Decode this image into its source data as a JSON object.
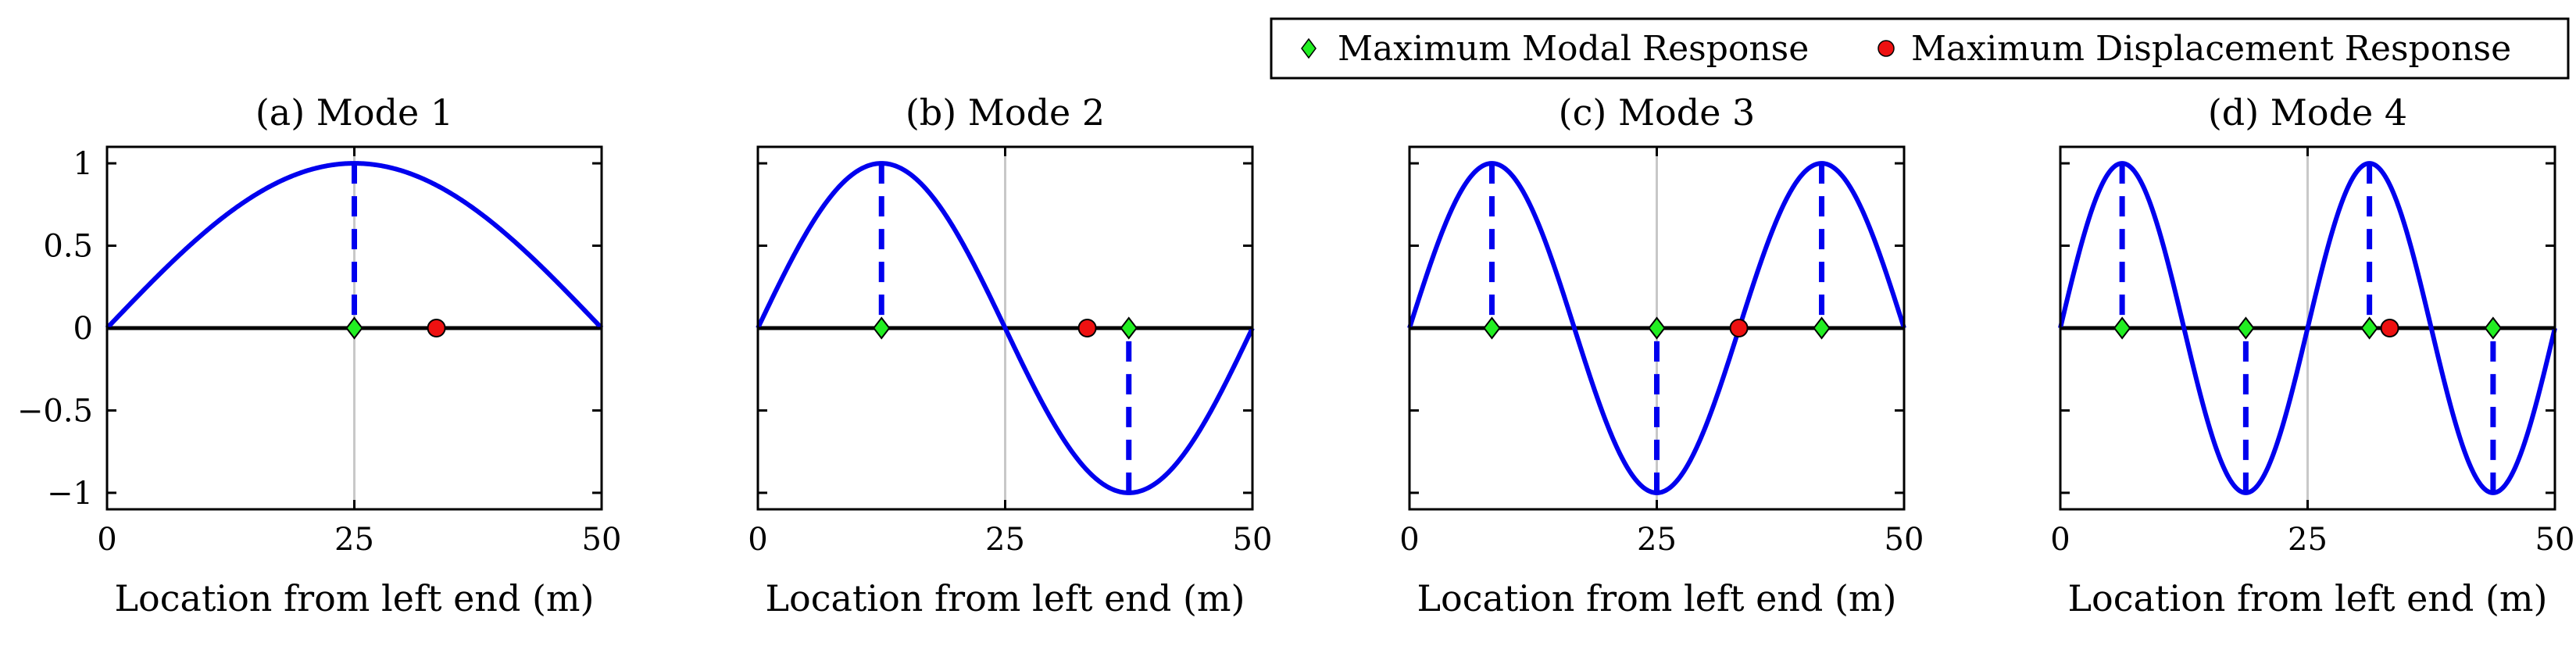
{
  "legend": {
    "entries": [
      {
        "label": "Maximum Modal Response",
        "marker": "diamond",
        "color": "#22ee22"
      },
      {
        "label": "Maximum Displacement Response",
        "marker": "circle",
        "color": "#ee1111"
      }
    ],
    "placement": "top-right"
  },
  "colors": {
    "curve": "#0000ee",
    "modal_marker": "#22ee22",
    "displacement_marker": "#ee1111",
    "baseline": "#000000",
    "midline": "#c8c8c8"
  },
  "chart_data": [
    {
      "type": "line",
      "title": "(a) Mode 1",
      "xlabel": "Location from left end (m)",
      "ylabel": "",
      "xlim": [
        0,
        50
      ],
      "ylim": [
        -1.1,
        1.1
      ],
      "xticks": [
        0,
        25,
        50
      ],
      "xtick_labels": [
        "0",
        "25",
        "50"
      ],
      "yticks": [
        1,
        0.5,
        0,
        -0.5,
        -1
      ],
      "ytick_labels": [
        "1",
        "0.5",
        "0",
        "−0.5",
        "−1"
      ],
      "show_yticklabels": true,
      "mode": 1,
      "beam_length": 50,
      "curve": "sin(mode * pi * x / L)",
      "modal_maxima_x": [
        25
      ],
      "displacement_max_x": [
        33.3
      ],
      "midline_x": 25
    },
    {
      "type": "line",
      "title": "(b) Mode 2",
      "xlabel": "Location from left end (m)",
      "ylabel": "",
      "xlim": [
        0,
        50
      ],
      "ylim": [
        -1.1,
        1.1
      ],
      "xticks": [
        0,
        25,
        50
      ],
      "xtick_labels": [
        "0",
        "25",
        "50"
      ],
      "yticks": [
        1,
        0.5,
        0,
        -0.5,
        -1
      ],
      "ytick_labels": [],
      "show_yticklabels": false,
      "mode": 2,
      "beam_length": 50,
      "curve": "sin(mode * pi * x / L)",
      "modal_maxima_x": [
        12.5,
        37.5
      ],
      "displacement_max_x": [
        33.3
      ],
      "midline_x": 25
    },
    {
      "type": "line",
      "title": "(c) Mode 3",
      "xlabel": "Location from left end (m)",
      "ylabel": "",
      "xlim": [
        0,
        50
      ],
      "ylim": [
        -1.1,
        1.1
      ],
      "xticks": [
        0,
        25,
        50
      ],
      "xtick_labels": [
        "0",
        "25",
        "50"
      ],
      "yticks": [
        1,
        0.5,
        0,
        -0.5,
        -1
      ],
      "ytick_labels": [],
      "show_yticklabels": false,
      "mode": 3,
      "beam_length": 50,
      "curve": "sin(mode * pi * x / L)",
      "modal_maxima_x": [
        8.33,
        25,
        41.67
      ],
      "displacement_max_x": [
        33.3
      ],
      "midline_x": 25
    },
    {
      "type": "line",
      "title": "(d) Mode 4",
      "xlabel": "Location from left end (m)",
      "ylabel": "",
      "xlim": [
        0,
        50
      ],
      "ylim": [
        -1.1,
        1.1
      ],
      "xticks": [
        0,
        25,
        50
      ],
      "xtick_labels": [
        "0",
        "25",
        "50"
      ],
      "yticks": [
        1,
        0.5,
        0,
        -0.5,
        -1
      ],
      "ytick_labels": [],
      "show_yticklabels": false,
      "mode": 4,
      "beam_length": 50,
      "curve": "sin(mode * pi * x / L)",
      "modal_maxima_x": [
        6.25,
        18.75,
        31.25,
        43.75
      ],
      "displacement_max_x": [
        33.3
      ],
      "midline_x": 25
    }
  ]
}
